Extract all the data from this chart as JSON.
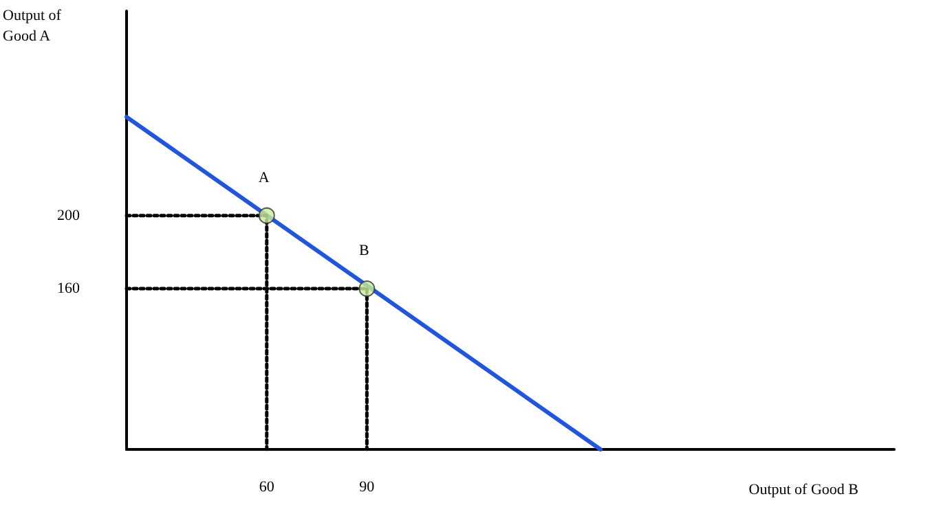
{
  "chart_data": {
    "type": "line",
    "xlabel": "Output of Good B",
    "ylabel": "Output of Good A",
    "xlim": [
      18,
      248
    ],
    "ylim": [
      72,
      312
    ],
    "xticks": [
      60,
      90
    ],
    "yticks": [
      160,
      200
    ],
    "grid": false,
    "series": [
      {
        "color": "#2255dd",
        "x": [
          18,
          160
        ],
        "values": [
          254,
          72
        ],
        "marker": "none",
        "line_style": "solid"
      },
      {
        "color": "#000000",
        "x": [
          18,
          60,
          60
        ],
        "values": [
          200,
          200,
          72
        ],
        "marker": "none",
        "line_style": "dotted"
      },
      {
        "color": "#000000",
        "x": [
          18,
          90,
          90
        ],
        "values": [
          160,
          160,
          72
        ],
        "marker": "none",
        "line_style": "dotted"
      },
      {
        "type": "scatter",
        "color": "#ccee99",
        "x": [
          60,
          90
        ],
        "values": [
          200,
          160
        ],
        "marker": "circle"
      }
    ],
    "annotations": [
      {
        "text": "A",
        "x": 60,
        "y": 200
      },
      {
        "text": "B",
        "x": 90,
        "y": 160
      }
    ]
  }
}
